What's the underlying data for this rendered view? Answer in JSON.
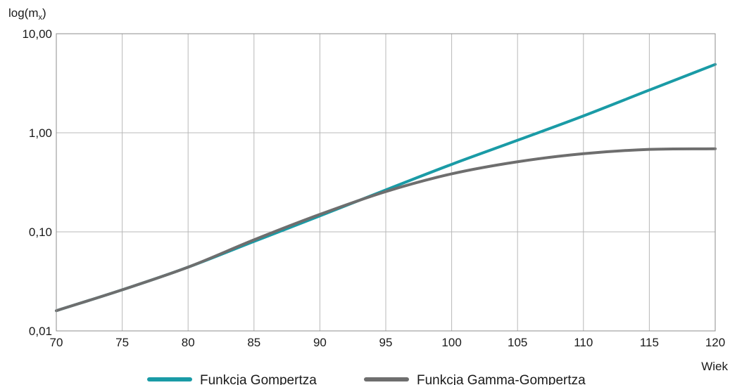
{
  "chart_data": {
    "type": "line",
    "ylabel": "log(m",
    "ylabel_sub": "x",
    "ylabel_close": ")",
    "xlabel": "Wiek",
    "xlim": [
      70,
      120
    ],
    "ylim": [
      0.01,
      10
    ],
    "yscale": "log",
    "grid": true,
    "legend_position": "bottom",
    "x_ticks": [
      70,
      75,
      80,
      85,
      90,
      95,
      100,
      105,
      110,
      115,
      120
    ],
    "x_tick_labels": [
      "70",
      "75",
      "80",
      "85",
      "90",
      "95",
      "100",
      "105",
      "110",
      "115",
      "120"
    ],
    "y_ticks": [
      0.01,
      0.1,
      1,
      10
    ],
    "y_tick_labels": [
      "0,01",
      "0,10",
      "1,00",
      "10,00"
    ],
    "series": [
      {
        "name": "Funkcja Gompertza",
        "color": "#1a9ba6",
        "x": [
          70,
          75,
          80,
          85,
          90,
          95,
          100,
          105,
          110,
          115,
          120
        ],
        "y": [
          0.016,
          0.026,
          0.044,
          0.08,
          0.145,
          0.265,
          0.48,
          0.84,
          1.48,
          2.7,
          4.9
        ]
      },
      {
        "name": "Funkcja Gamma-Gompertza",
        "color": "#6e6e6e",
        "x": [
          70,
          75,
          80,
          85,
          90,
          95,
          100,
          105,
          110,
          115,
          120
        ],
        "y": [
          0.016,
          0.026,
          0.044,
          0.083,
          0.15,
          0.255,
          0.385,
          0.51,
          0.615,
          0.68,
          0.69
        ]
      }
    ]
  }
}
